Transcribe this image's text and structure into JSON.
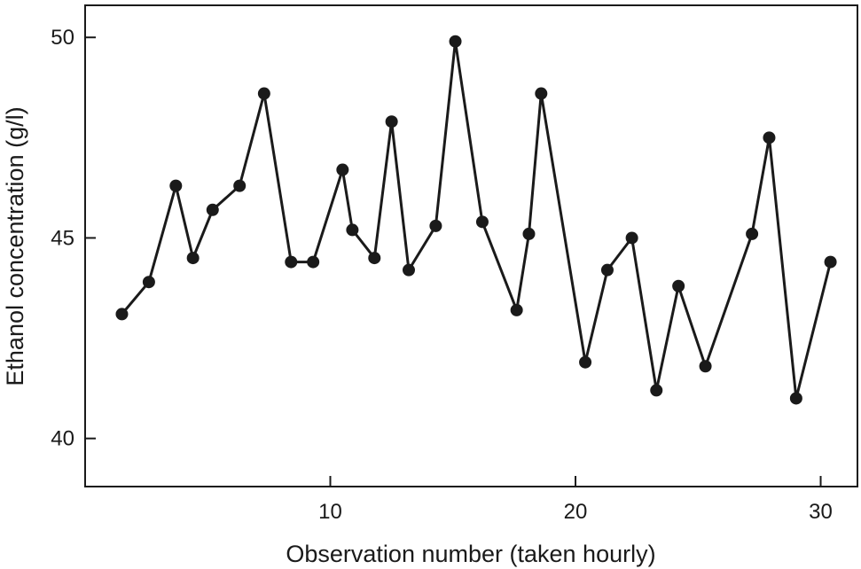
{
  "chart_data": {
    "type": "line",
    "title": "",
    "xlabel": "Observation number (taken hourly)",
    "ylabel": "Ethanol concentration (g/l)",
    "xlim": [
      0,
      31.5
    ],
    "ylim": [
      38.8,
      50.8
    ],
    "xticks": [
      10,
      20,
      30
    ],
    "yticks": [
      40,
      45,
      50
    ],
    "grid": false,
    "legend": "none",
    "line_color": "#1a1a1a",
    "series": [
      {
        "x": [
          1.5,
          2.6,
          3.7,
          4.4,
          5.2,
          6.3,
          7.3,
          8.4,
          9.3,
          10.5,
          10.9,
          11.8,
          12.5,
          13.2,
          14.3,
          15.1,
          16.2,
          17.6,
          18.1,
          18.6,
          20.4,
          21.3,
          22.3,
          23.3,
          24.2,
          25.3,
          27.2,
          27.9,
          29.0,
          30.4
        ],
        "y": [
          43.1,
          43.9,
          46.3,
          44.5,
          45.7,
          46.3,
          48.6,
          44.4,
          44.4,
          46.7,
          45.2,
          44.5,
          47.9,
          44.2,
          45.3,
          49.9,
          45.4,
          43.2,
          45.1,
          48.6,
          41.9,
          44.2,
          45.0,
          41.2,
          43.8,
          41.8,
          45.1,
          47.5,
          41.0,
          44.4
        ]
      }
    ]
  }
}
